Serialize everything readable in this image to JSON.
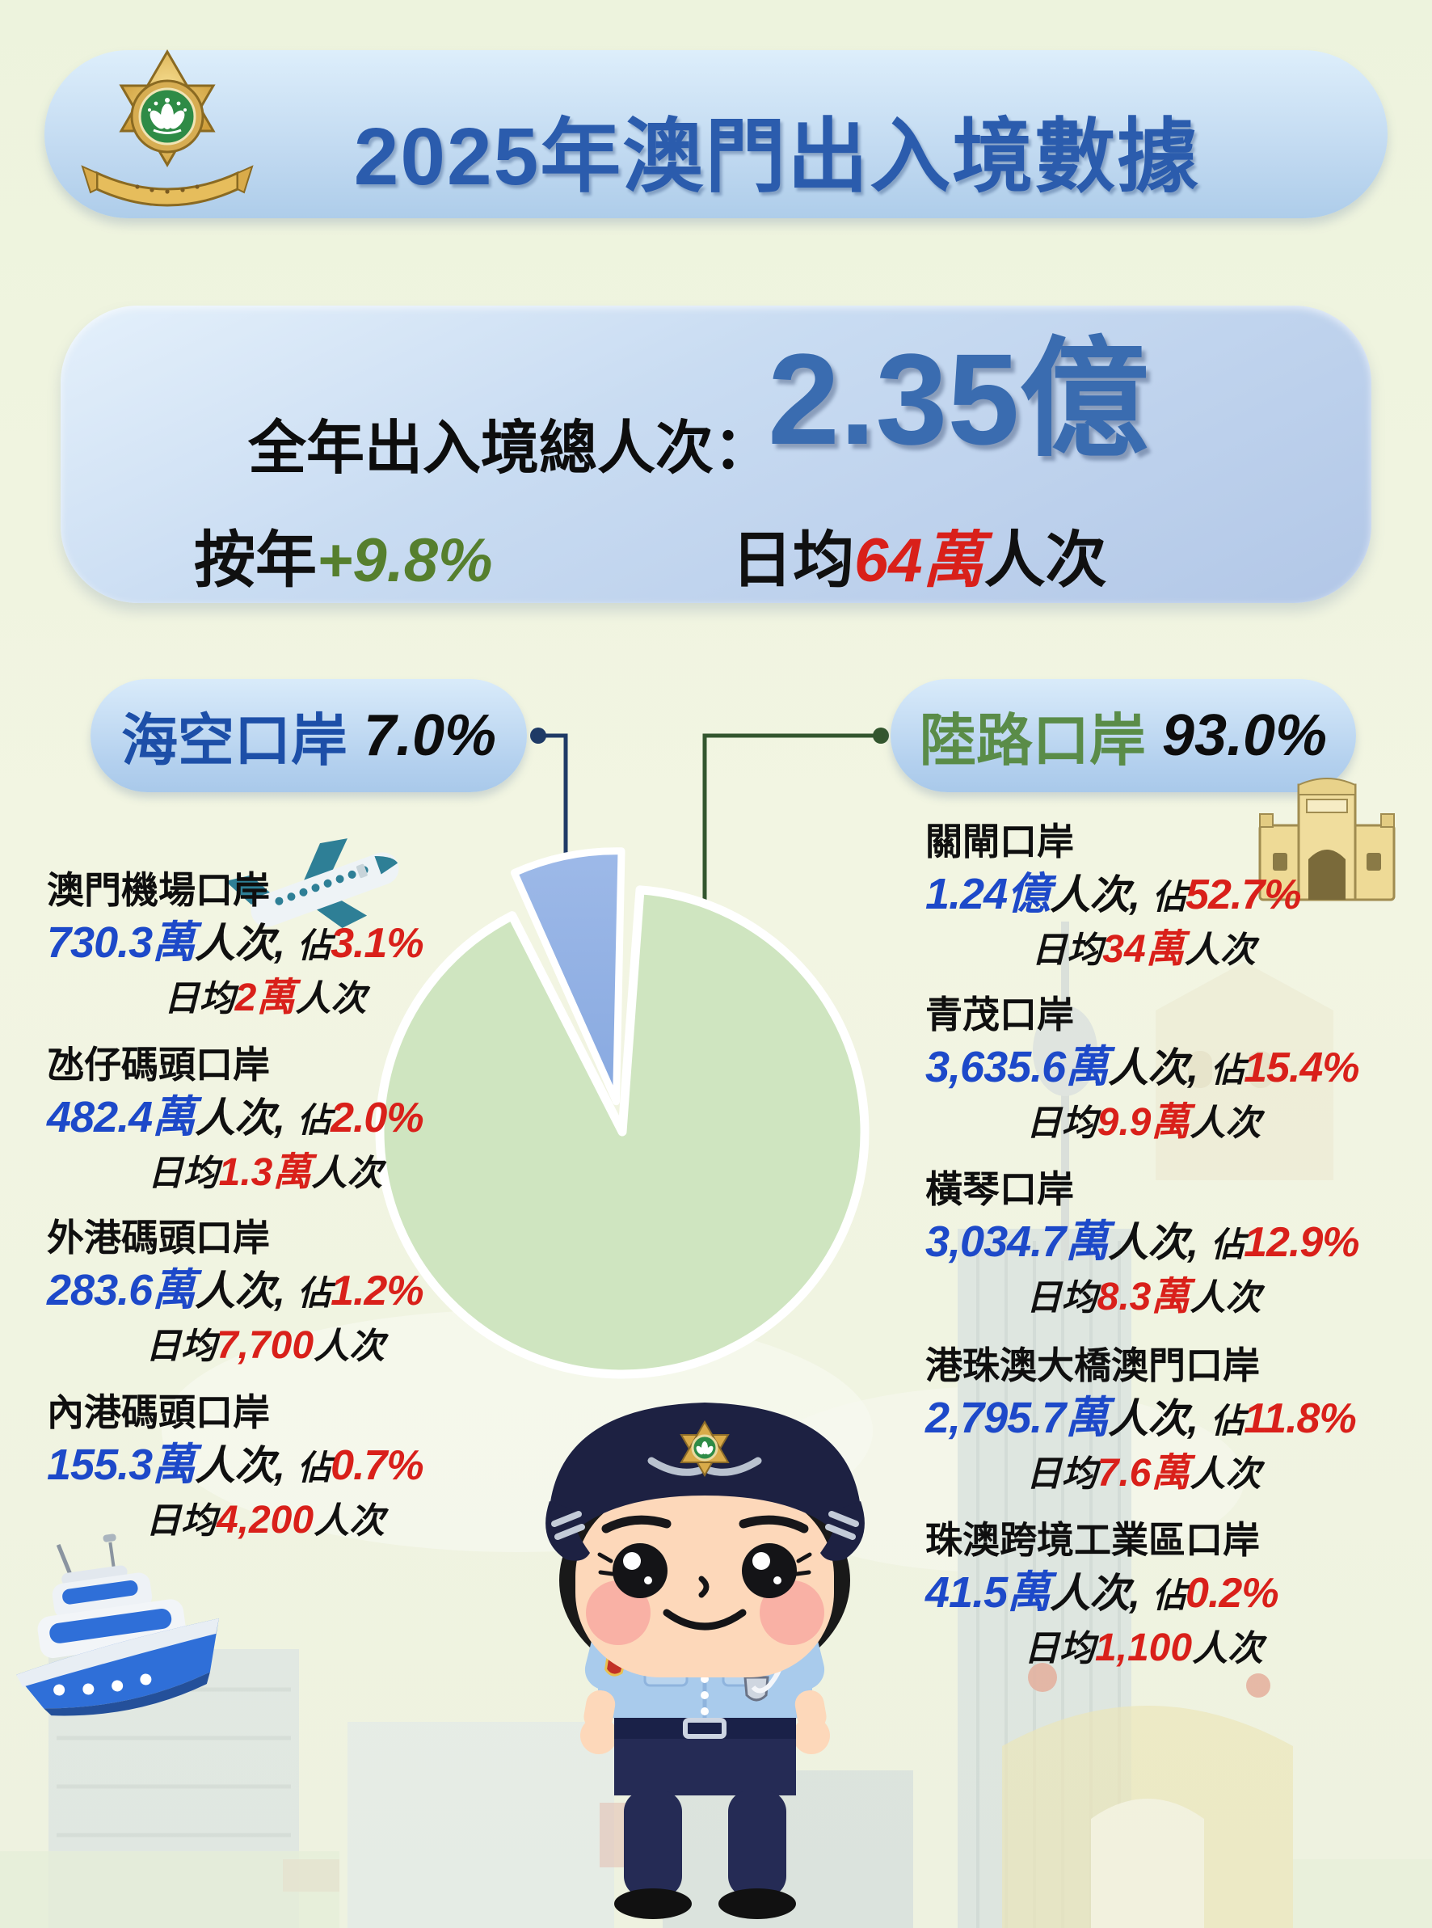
{
  "header": {
    "title": "2025年澳門出入境數據"
  },
  "summary": {
    "total_label": "全年出入境總人次：",
    "total_value": "2.35億",
    "yoy_label": "按年",
    "yoy_value": "+9.8%",
    "daily_label": "日均",
    "daily_value": "64萬",
    "daily_unit": "人次"
  },
  "categories": {
    "sea_air": {
      "label": "海空口岸",
      "pct": "7.0%"
    },
    "land": {
      "label": "陸路口岸",
      "pct": "93.0%"
    }
  },
  "labels": {
    "unit": "人次,",
    "share_prefix": "佔",
    "daily_prefix": "日均",
    "daily_suffix": "人次"
  },
  "sea_air_ports": [
    {
      "name": "澳門機場口岸",
      "volume": "730.3萬",
      "share": "3.1%",
      "daily": "2萬"
    },
    {
      "name": "氹仔碼頭口岸",
      "volume": "482.4萬",
      "share": "2.0%",
      "daily": "1.3萬"
    },
    {
      "name": "外港碼頭口岸",
      "volume": "283.6萬",
      "share": "1.2%",
      "daily": "7,700"
    },
    {
      "name": "內港碼頭口岸",
      "volume": "155.3萬",
      "share": "0.7%",
      "daily": "4,200"
    }
  ],
  "land_ports": [
    {
      "name": "關閘口岸",
      "volume": "1.24億",
      "share": "52.7%",
      "daily": "34萬"
    },
    {
      "name": "青茂口岸",
      "volume": "3,635.6萬",
      "share": "15.4%",
      "daily": "9.9萬"
    },
    {
      "name": "橫琴口岸",
      "volume": "3,034.7萬",
      "share": "12.9%",
      "daily": "8.3萬"
    },
    {
      "name": "港珠澳大橋澳門口岸",
      "volume": "2,795.7萬",
      "share": "11.8%",
      "daily": "7.6萬"
    },
    {
      "name": "珠澳跨境工業區口岸",
      "volume": "41.5萬",
      "share": "0.2%",
      "daily": "1,100"
    }
  ],
  "icons": {
    "badge": "macau-police-badge-icon",
    "plane": "airplane-icon",
    "gate": "border-gate-icon",
    "boat": "ferry-boat-icon",
    "mascot": "police-officer-mascot"
  },
  "colors": {
    "title_blue": "#2b5cad",
    "big_number_blue": "#3a6cb0",
    "value_blue": "#1d49c9",
    "value_red": "#d9201a",
    "yoy_green": "#567f2e",
    "land_green": "#5a8c48",
    "pie_sea_air": "#8fb0e4",
    "pie_land": "#cfe5c0"
  },
  "chart_data": {
    "type": "pie",
    "title": "2025年澳門出入境數據",
    "categories": [
      "海空口岸",
      "陸路口岸"
    ],
    "values": [
      7.0,
      93.0
    ],
    "unit": "%",
    "legend_position": "callout-pills",
    "total_label": "全年出入境總人次",
    "total_value": "2.35億",
    "yoy_change": "+9.8%",
    "daily_average": "64萬人次",
    "breakdown": {
      "海空口岸": [
        {
          "name": "澳門機場口岸",
          "volume": "730.3萬人次",
          "share_pct": 3.1,
          "daily_avg": "2萬人次"
        },
        {
          "name": "氹仔碼頭口岸",
          "volume": "482.4萬人次",
          "share_pct": 2.0,
          "daily_avg": "1.3萬人次"
        },
        {
          "name": "外港碼頭口岸",
          "volume": "283.6萬人次",
          "share_pct": 1.2,
          "daily_avg": "7,700人次"
        },
        {
          "name": "內港碼頭口岸",
          "volume": "155.3萬人次",
          "share_pct": 0.7,
          "daily_avg": "4,200人次"
        }
      ],
      "陸路口岸": [
        {
          "name": "關閘口岸",
          "volume": "1.24億人次",
          "share_pct": 52.7,
          "daily_avg": "34萬人次"
        },
        {
          "name": "青茂口岸",
          "volume": "3,635.6萬人次",
          "share_pct": 15.4,
          "daily_avg": "9.9萬人次"
        },
        {
          "name": "橫琴口岸",
          "volume": "3,034.7萬人次",
          "share_pct": 12.9,
          "daily_avg": "8.3萬人次"
        },
        {
          "name": "港珠澳大橋澳門口岸",
          "volume": "2,795.7萬人次",
          "share_pct": 11.8,
          "daily_avg": "7.6萬人次"
        },
        {
          "name": "珠澳跨境工業區口岸",
          "volume": "41.5萬人次",
          "share_pct": 0.2,
          "daily_avg": "1,100人次"
        }
      ]
    }
  }
}
